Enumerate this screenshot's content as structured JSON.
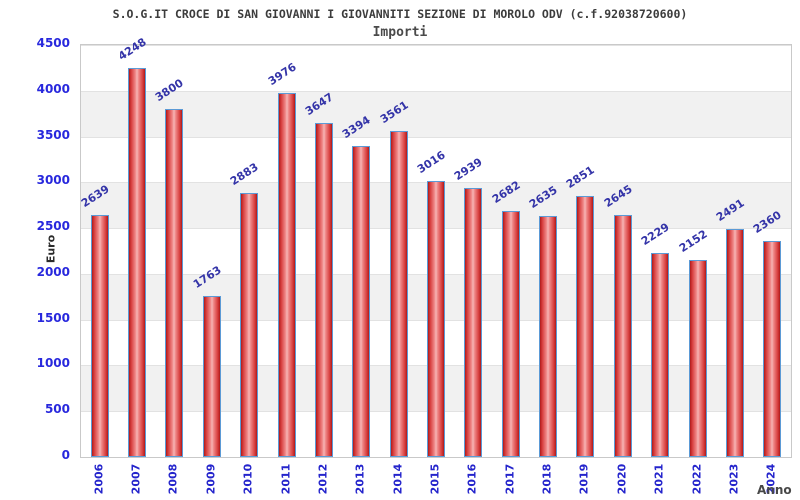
{
  "chart_data": {
    "type": "bar",
    "title": "S.O.G.IT CROCE DI SAN GIOVANNI I GIOVANNITI SEZIONE DI MOROLO ODV (c.f.92038720600)",
    "subtitle": "Importi",
    "xlabel": "Anno",
    "ylabel": "Euro",
    "categories": [
      "2006",
      "2007",
      "2008",
      "2009",
      "2010",
      "2011",
      "2012",
      "2013",
      "2014",
      "2015",
      "2016",
      "2017",
      "2018",
      "2019",
      "2020",
      "2021",
      "2022",
      "2023",
      "2024"
    ],
    "values": [
      2639,
      4248,
      3800,
      1763,
      2883,
      3976,
      3647,
      3394,
      3561,
      3016,
      2939,
      2682,
      2635,
      2851,
      2645,
      2229,
      2152,
      2491,
      2360
    ],
    "ylim": [
      0,
      4500
    ],
    "yticks": [
      0,
      500,
      1000,
      1500,
      2000,
      2500,
      3000,
      3500,
      4000,
      4500
    ],
    "grid": "horizontal gridlines with alternating gray bands",
    "legend": "none",
    "colors": {
      "bar_edge": "#b01a1a",
      "bar_center": "#f7b5b5",
      "bar_border": "#5b9ad6",
      "value_label": "#3434a8",
      "axis_tick_label": "#2828dd",
      "band_gray": "#f1f1f1",
      "title_text": "#3c3c3c"
    }
  }
}
